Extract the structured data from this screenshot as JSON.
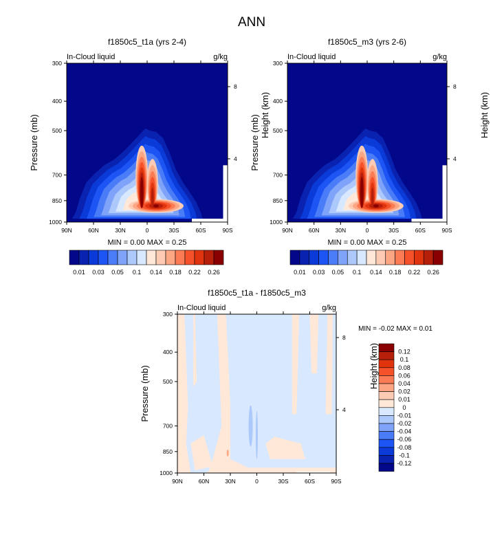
{
  "chart_data": {
    "type": "heatmap",
    "title": "ANN",
    "panels": [
      {
        "title": "f1850c5_t1a (yrs 2-4)",
        "left_label": "In-Cloud liquid",
        "right_label": "g/kg",
        "ylabel": "Pressure (mb)",
        "ylabel_right": "Height (km)",
        "xticks": [
          "90N",
          "60N",
          "30N",
          "0",
          "30S",
          "60S",
          "90S"
        ],
        "yticks": [
          "300",
          "400",
          "500",
          "700",
          "850",
          "1000"
        ],
        "yticks_right": [
          "8",
          "4"
        ],
        "ylim": [
          1000,
          300
        ],
        "xlim": [
          90,
          -90
        ],
        "stats": "MIN =   0.00  MAX =   0.25",
        "min": 0.0,
        "max": 0.25,
        "colorbar_labels": [
          "0.01",
          "0.03",
          "0.05",
          "0.1",
          "0.14",
          "0.18",
          "0.22",
          "0.26"
        ]
      },
      {
        "title": "f1850c5_m3 (yrs 2-6)",
        "left_label": "In-Cloud liquid",
        "right_label": "g/kg",
        "ylabel": "Pressure (mb)",
        "ylabel_right": "Height (km)",
        "xticks": [
          "90N",
          "60N",
          "30N",
          "0",
          "30S",
          "60S",
          "90S"
        ],
        "yticks": [
          "300",
          "400",
          "500",
          "700",
          "850",
          "1000"
        ],
        "yticks_right": [
          "8",
          "4"
        ],
        "ylim": [
          1000,
          300
        ],
        "xlim": [
          90,
          -90
        ],
        "stats": "MIN =   0.00  MAX =   0.25",
        "min": 0.0,
        "max": 0.25,
        "colorbar_labels": [
          "0.01",
          "0.03",
          "0.05",
          "0.1",
          "0.14",
          "0.18",
          "0.22",
          "0.26"
        ]
      },
      {
        "title": "f1850c5_t1a - f1850c5_m3",
        "left_label": "In-Cloud liquid",
        "right_label": "g/kg",
        "ylabel": "Pressure (mb)",
        "ylabel_right": "Height (km)",
        "xticks": [
          "90N",
          "60N",
          "30N",
          "0",
          "30S",
          "60S",
          "90S"
        ],
        "yticks": [
          "300",
          "400",
          "500",
          "700",
          "850",
          "1000"
        ],
        "yticks_right": [
          "8",
          "4"
        ],
        "ylim": [
          1000,
          300
        ],
        "xlim": [
          90,
          -90
        ],
        "stats": "MIN =  -0.02  MAX =   0.01",
        "min": -0.02,
        "max": 0.01,
        "colorbar_labels": [
          "0.12",
          "0.1",
          "0.08",
          "0.06",
          "0.04",
          "0.02",
          "0.01",
          "0",
          "-0.01",
          "-0.02",
          "-0.04",
          "-0.06",
          "-0.08",
          "-0.1",
          "-0.12"
        ]
      }
    ],
    "colors": [
      "#03088a",
      "#0a22b0",
      "#0a3bd8",
      "#1d55f5",
      "#4a7cf7",
      "#7ea3f8",
      "#adc8fb",
      "#d8e8ff",
      "#ffe8d8",
      "#fdcbb3",
      "#fca684",
      "#fb7b54",
      "#f5522a",
      "#e0340f",
      "#b6200b",
      "#8a0000"
    ]
  }
}
